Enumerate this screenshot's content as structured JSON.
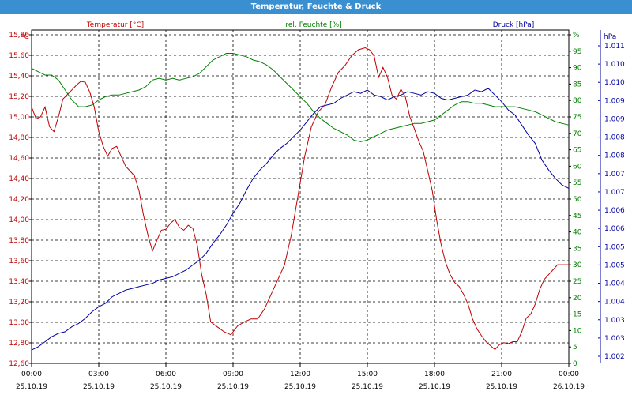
{
  "window": {
    "title": "Temperatur, Feuchte & Druck"
  },
  "chart_data": {
    "type": "line",
    "title": "Temperatur, Feuchte & Druck",
    "grid": true,
    "x_ticks": [
      {
        "time": "00:00",
        "date": "25.10.19"
      },
      {
        "time": "03:00",
        "date": "25.10.19"
      },
      {
        "time": "06:00",
        "date": "25.10.19"
      },
      {
        "time": "09:00",
        "date": "25.10.19"
      },
      {
        "time": "12:00",
        "date": "25.10.19"
      },
      {
        "time": "15:00",
        "date": "25.10.19"
      },
      {
        "time": "18:00",
        "date": "25.10.19"
      },
      {
        "time": "21:00",
        "date": "25.10.19"
      },
      {
        "time": "00:00",
        "date": "26.10.19"
      }
    ],
    "xlim": [
      0,
      24
    ],
    "axes": {
      "temp": {
        "legend": "Temperatur [°C]",
        "unit": "°C",
        "color": "#c00000",
        "ylim": [
          12.6,
          15.98
        ],
        "ticks": [
          "12,60",
          "12,80",
          "13,00",
          "13,20",
          "13,40",
          "13,60",
          "13,80",
          "14,00",
          "14,20",
          "14,40",
          "14,60",
          "14,80",
          "15,00",
          "15,20",
          "15,40",
          "15,60",
          "15,80"
        ]
      },
      "hum": {
        "legend": "rel. Feuchte [%]",
        "unit": "%",
        "color": "#008000",
        "ylim": [
          0,
          100
        ],
        "ticks": [
          "0",
          "5",
          "10",
          "15",
          "20",
          "25",
          "30",
          "35",
          "40",
          "45",
          "50",
          "55",
          "60",
          "65",
          "70",
          "75",
          "80",
          "85",
          "90",
          "95",
          "%"
        ]
      },
      "press": {
        "legend": "Druck [hPa]",
        "unit": "hPa",
        "color": "#0000a0",
        "ylim": [
          1001.5,
          1011.5
        ],
        "ticks": [
          "1.002",
          "1.003",
          "1.003",
          "1.004",
          "1.004",
          "1.005",
          "1.005",
          "1.006",
          "1.006",
          "1.007",
          "1.007",
          "1.008",
          "1.008",
          "1.009",
          "1.009",
          "1.010",
          "1.010",
          "1.011"
        ]
      }
    },
    "series": [
      {
        "name": "Temperatur [°C]",
        "axis": "temp",
        "color": "#c00000",
        "points": [
          [
            0,
            15.2
          ],
          [
            0.2,
            15.08
          ],
          [
            0.4,
            15.1
          ],
          [
            0.6,
            15.2
          ],
          [
            0.8,
            15.0
          ],
          [
            1.0,
            14.95
          ],
          [
            1.2,
            15.1
          ],
          [
            1.4,
            15.28
          ],
          [
            1.7,
            15.35
          ],
          [
            2.0,
            15.42
          ],
          [
            2.2,
            15.46
          ],
          [
            2.4,
            15.45
          ],
          [
            2.6,
            15.35
          ],
          [
            2.8,
            15.2
          ],
          [
            3.0,
            14.95
          ],
          [
            3.2,
            14.8
          ],
          [
            3.4,
            14.7
          ],
          [
            3.6,
            14.78
          ],
          [
            3.8,
            14.8
          ],
          [
            4.0,
            14.7
          ],
          [
            4.2,
            14.6
          ],
          [
            4.4,
            14.55
          ],
          [
            4.6,
            14.5
          ],
          [
            4.8,
            14.35
          ],
          [
            5.0,
            14.1
          ],
          [
            5.2,
            13.9
          ],
          [
            5.4,
            13.74
          ],
          [
            5.6,
            13.85
          ],
          [
            5.8,
            13.95
          ],
          [
            6.0,
            13.96
          ],
          [
            6.2,
            14.02
          ],
          [
            6.4,
            14.06
          ],
          [
            6.6,
            13.98
          ],
          [
            6.8,
            13.95
          ],
          [
            7.0,
            14.0
          ],
          [
            7.2,
            13.97
          ],
          [
            7.4,
            13.8
          ],
          [
            7.6,
            13.5
          ],
          [
            7.8,
            13.3
          ],
          [
            8.0,
            13.02
          ],
          [
            8.3,
            12.97
          ],
          [
            8.6,
            12.92
          ],
          [
            8.9,
            12.89
          ],
          [
            9.2,
            12.98
          ],
          [
            9.5,
            13.02
          ],
          [
            9.8,
            13.05
          ],
          [
            10.1,
            13.05
          ],
          [
            10.4,
            13.15
          ],
          [
            10.7,
            13.3
          ],
          [
            11.0,
            13.45
          ],
          [
            11.3,
            13.6
          ],
          [
            11.6,
            13.9
          ],
          [
            11.9,
            14.3
          ],
          [
            12.2,
            14.7
          ],
          [
            12.5,
            15.0
          ],
          [
            12.8,
            15.15
          ],
          [
            13.1,
            15.22
          ],
          [
            13.4,
            15.4
          ],
          [
            13.7,
            15.55
          ],
          [
            14.0,
            15.62
          ],
          [
            14.3,
            15.72
          ],
          [
            14.6,
            15.78
          ],
          [
            14.9,
            15.8
          ],
          [
            15.1,
            15.78
          ],
          [
            15.3,
            15.72
          ],
          [
            15.5,
            15.5
          ],
          [
            15.7,
            15.6
          ],
          [
            15.9,
            15.5
          ],
          [
            16.1,
            15.32
          ],
          [
            16.3,
            15.28
          ],
          [
            16.5,
            15.38
          ],
          [
            16.7,
            15.3
          ],
          [
            16.9,
            15.1
          ],
          [
            17.1,
            14.98
          ],
          [
            17.3,
            14.85
          ],
          [
            17.5,
            14.75
          ],
          [
            17.7,
            14.55
          ],
          [
            17.9,
            14.35
          ],
          [
            18.1,
            14.05
          ],
          [
            18.3,
            13.8
          ],
          [
            18.5,
            13.62
          ],
          [
            18.7,
            13.5
          ],
          [
            18.9,
            13.42
          ],
          [
            19.1,
            13.38
          ],
          [
            19.3,
            13.3
          ],
          [
            19.5,
            13.2
          ],
          [
            19.7,
            13.05
          ],
          [
            19.9,
            12.95
          ],
          [
            20.1,
            12.88
          ],
          [
            20.3,
            12.82
          ],
          [
            20.5,
            12.78
          ],
          [
            20.7,
            12.74
          ],
          [
            20.9,
            12.79
          ],
          [
            21.1,
            12.81
          ],
          [
            21.3,
            12.8
          ],
          [
            21.5,
            12.82
          ],
          [
            21.7,
            12.82
          ],
          [
            21.9,
            12.92
          ],
          [
            22.1,
            13.06
          ],
          [
            22.3,
            13.1
          ],
          [
            22.5,
            13.2
          ],
          [
            22.7,
            13.35
          ],
          [
            22.9,
            13.45
          ],
          [
            23.1,
            13.5
          ],
          [
            23.3,
            13.55
          ],
          [
            23.5,
            13.6
          ],
          [
            23.7,
            13.6
          ],
          [
            23.9,
            13.6
          ],
          [
            24.0,
            13.6
          ]
        ]
      },
      {
        "name": "rel. Feuchte [%]",
        "axis": "hum",
        "color": "#008000",
        "points": [
          [
            0,
            88.5
          ],
          [
            0.3,
            87.5
          ],
          [
            0.6,
            86.5
          ],
          [
            0.9,
            86.5
          ],
          [
            1.2,
            85
          ],
          [
            1.5,
            82
          ],
          [
            1.8,
            79
          ],
          [
            2.1,
            77
          ],
          [
            2.4,
            77
          ],
          [
            2.7,
            77.5
          ],
          [
            3.0,
            79
          ],
          [
            3.3,
            80
          ],
          [
            3.6,
            80.5
          ],
          [
            3.9,
            80.5
          ],
          [
            4.2,
            81
          ],
          [
            4.5,
            81.5
          ],
          [
            4.8,
            82
          ],
          [
            5.1,
            83
          ],
          [
            5.4,
            85
          ],
          [
            5.7,
            85.5
          ],
          [
            6.0,
            85
          ],
          [
            6.3,
            85.5
          ],
          [
            6.6,
            85
          ],
          [
            6.9,
            85.5
          ],
          [
            7.2,
            86
          ],
          [
            7.5,
            87
          ],
          [
            7.8,
            89
          ],
          [
            8.1,
            91
          ],
          [
            8.4,
            92
          ],
          [
            8.7,
            93
          ],
          [
            9.0,
            93
          ],
          [
            9.3,
            92.5
          ],
          [
            9.6,
            92
          ],
          [
            9.9,
            91
          ],
          [
            10.2,
            90.5
          ],
          [
            10.5,
            89.5
          ],
          [
            10.8,
            88
          ],
          [
            11.1,
            86
          ],
          [
            11.4,
            84
          ],
          [
            11.7,
            82
          ],
          [
            12.0,
            80
          ],
          [
            12.3,
            78
          ],
          [
            12.6,
            75.5
          ],
          [
            12.9,
            73.5
          ],
          [
            13.2,
            72
          ],
          [
            13.5,
            70.5
          ],
          [
            13.8,
            69.5
          ],
          [
            14.1,
            68.5
          ],
          [
            14.4,
            67
          ],
          [
            14.7,
            66.5
          ],
          [
            15.0,
            67
          ],
          [
            15.3,
            68
          ],
          [
            15.6,
            69
          ],
          [
            15.9,
            70
          ],
          [
            16.2,
            70.5
          ],
          [
            16.5,
            71
          ],
          [
            16.8,
            71.5
          ],
          [
            17.1,
            72
          ],
          [
            17.4,
            72
          ],
          [
            17.7,
            72.5
          ],
          [
            18.0,
            73
          ],
          [
            18.3,
            74.5
          ],
          [
            18.6,
            76
          ],
          [
            18.9,
            77.5
          ],
          [
            19.2,
            78.5
          ],
          [
            19.5,
            78.5
          ],
          [
            19.8,
            78
          ],
          [
            20.1,
            78
          ],
          [
            20.4,
            77.5
          ],
          [
            20.7,
            77
          ],
          [
            21.0,
            77
          ],
          [
            21.3,
            77
          ],
          [
            21.6,
            77
          ],
          [
            21.9,
            76.5
          ],
          [
            22.2,
            76
          ],
          [
            22.5,
            75.5
          ],
          [
            22.8,
            74.5
          ],
          [
            23.1,
            73.5
          ],
          [
            23.4,
            72.5
          ],
          [
            23.7,
            72
          ],
          [
            24.0,
            71.5
          ]
        ]
      },
      {
        "name": "Druck [hPa]",
        "axis": "press",
        "color": "#0000a0",
        "points": [
          [
            0,
            1001.9
          ],
          [
            0.3,
            1002.0
          ],
          [
            0.6,
            1002.15
          ],
          [
            0.9,
            1002.3
          ],
          [
            1.2,
            1002.4
          ],
          [
            1.5,
            1002.45
          ],
          [
            1.8,
            1002.6
          ],
          [
            2.1,
            1002.7
          ],
          [
            2.4,
            1002.85
          ],
          [
            2.7,
            1003.05
          ],
          [
            3.0,
            1003.2
          ],
          [
            3.3,
            1003.3
          ],
          [
            3.6,
            1003.5
          ],
          [
            3.9,
            1003.6
          ],
          [
            4.2,
            1003.7
          ],
          [
            4.5,
            1003.75
          ],
          [
            4.8,
            1003.8
          ],
          [
            5.1,
            1003.85
          ],
          [
            5.4,
            1003.9
          ],
          [
            5.7,
            1004.0
          ],
          [
            6.0,
            1004.05
          ],
          [
            6.3,
            1004.1
          ],
          [
            6.6,
            1004.2
          ],
          [
            6.9,
            1004.3
          ],
          [
            7.2,
            1004.45
          ],
          [
            7.5,
            1004.6
          ],
          [
            7.8,
            1004.8
          ],
          [
            8.1,
            1005.1
          ],
          [
            8.4,
            1005.35
          ],
          [
            8.7,
            1005.65
          ],
          [
            9.0,
            1006.0
          ],
          [
            9.3,
            1006.3
          ],
          [
            9.6,
            1006.7
          ],
          [
            9.9,
            1007.05
          ],
          [
            10.2,
            1007.3
          ],
          [
            10.5,
            1007.5
          ],
          [
            10.8,
            1007.75
          ],
          [
            11.1,
            1007.95
          ],
          [
            11.4,
            1008.1
          ],
          [
            11.7,
            1008.3
          ],
          [
            12.0,
            1008.5
          ],
          [
            12.3,
            1008.75
          ],
          [
            12.6,
            1009.0
          ],
          [
            12.9,
            1009.2
          ],
          [
            13.2,
            1009.25
          ],
          [
            13.5,
            1009.3
          ],
          [
            13.8,
            1009.45
          ],
          [
            14.1,
            1009.55
          ],
          [
            14.4,
            1009.65
          ],
          [
            14.7,
            1009.6
          ],
          [
            15.0,
            1009.7
          ],
          [
            15.3,
            1009.55
          ],
          [
            15.6,
            1009.5
          ],
          [
            15.9,
            1009.4
          ],
          [
            16.2,
            1009.5
          ],
          [
            16.5,
            1009.55
          ],
          [
            16.8,
            1009.65
          ],
          [
            17.1,
            1009.6
          ],
          [
            17.4,
            1009.55
          ],
          [
            17.7,
            1009.65
          ],
          [
            18.0,
            1009.6
          ],
          [
            18.3,
            1009.45
          ],
          [
            18.6,
            1009.4
          ],
          [
            18.9,
            1009.45
          ],
          [
            19.2,
            1009.5
          ],
          [
            19.5,
            1009.55
          ],
          [
            19.8,
            1009.7
          ],
          [
            20.1,
            1009.65
          ],
          [
            20.4,
            1009.75
          ],
          [
            20.7,
            1009.55
          ],
          [
            21.0,
            1009.35
          ],
          [
            21.3,
            1009.1
          ],
          [
            21.6,
            1008.95
          ],
          [
            21.9,
            1008.65
          ],
          [
            22.2,
            1008.35
          ],
          [
            22.5,
            1008.1
          ],
          [
            22.8,
            1007.6
          ],
          [
            23.1,
            1007.3
          ],
          [
            23.4,
            1007.05
          ],
          [
            23.7,
            1006.85
          ],
          [
            24.0,
            1006.75
          ]
        ]
      }
    ]
  }
}
